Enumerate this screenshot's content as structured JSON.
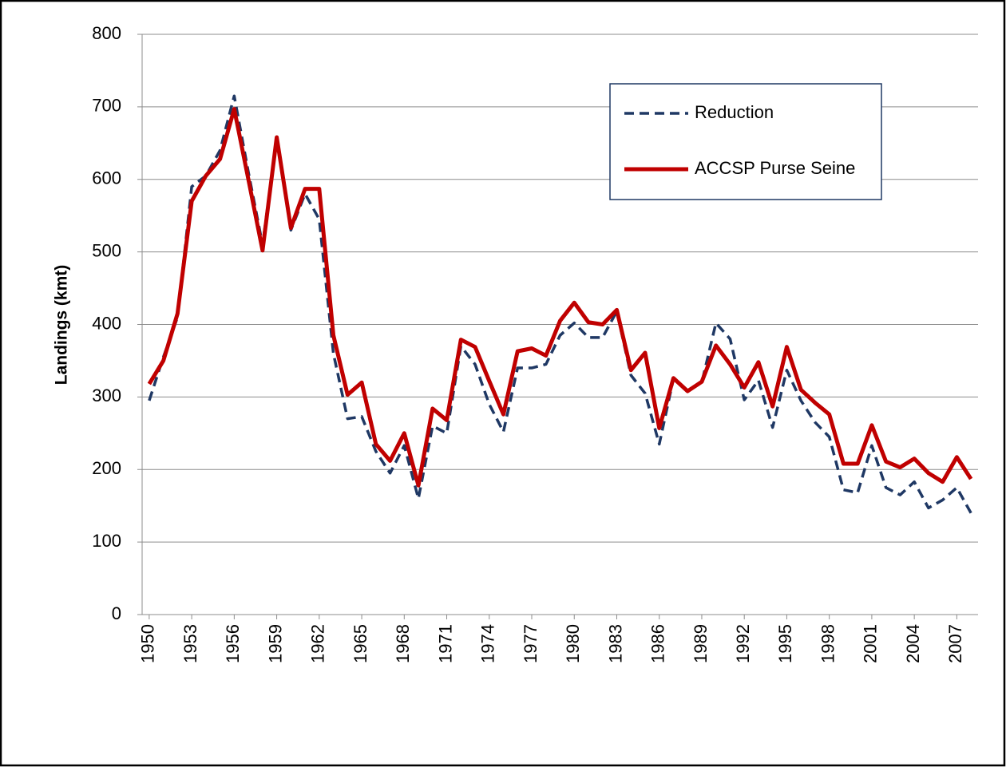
{
  "chart_data": {
    "type": "line",
    "y_label": "Landings (kmt)",
    "x": [
      1950,
      1951,
      1952,
      1953,
      1954,
      1955,
      1956,
      1957,
      1958,
      1959,
      1960,
      1961,
      1962,
      1963,
      1964,
      1965,
      1966,
      1967,
      1968,
      1969,
      1970,
      1971,
      1972,
      1973,
      1974,
      1975,
      1976,
      1977,
      1978,
      1979,
      1980,
      1981,
      1982,
      1983,
      1984,
      1985,
      1986,
      1987,
      1988,
      1989,
      1990,
      1991,
      1992,
      1993,
      1994,
      1995,
      1996,
      1997,
      1998,
      1999,
      2000,
      2001,
      2002,
      2003,
      2004,
      2005,
      2006,
      2007,
      2008
    ],
    "xlim": [
      1949.5,
      2008.5
    ],
    "xticks": [
      1950,
      1953,
      1956,
      1959,
      1962,
      1965,
      1968,
      1971,
      1974,
      1977,
      1980,
      1983,
      1986,
      1989,
      1992,
      1995,
      1998,
      2001,
      2004,
      2007
    ],
    "ylim": [
      0,
      800
    ],
    "yticks": [
      0,
      100,
      200,
      300,
      400,
      500,
      600,
      700,
      800
    ],
    "grid": true,
    "legend": "upper right",
    "series": [
      {
        "name": "Reduction",
        "color": "#1f3864",
        "dashed": true,
        "values": [
          295,
          355,
          410,
          590,
          605,
          640,
          715,
          610,
          510,
          655,
          530,
          580,
          545,
          360,
          270,
          273,
          225,
          195,
          233,
          160,
          260,
          250,
          370,
          345,
          290,
          252,
          340,
          340,
          345,
          385,
          402,
          382,
          382,
          418,
          330,
          305,
          235,
          325,
          308,
          320,
          402,
          380,
          296,
          323,
          258,
          337,
          295,
          265,
          245,
          172,
          168,
          233,
          175,
          165,
          183,
          147,
          158,
          175,
          140
        ]
      },
      {
        "name": "ACCSP Purse Seine",
        "color": "#c00000",
        "dashed": false,
        "values": [
          318,
          350,
          415,
          570,
          605,
          628,
          697,
          600,
          502,
          658,
          533,
          587,
          587,
          385,
          303,
          320,
          235,
          212,
          250,
          178,
          284,
          268,
          379,
          369,
          322,
          276,
          363,
          367,
          357,
          405,
          430,
          403,
          400,
          420,
          337,
          361,
          257,
          326,
          308,
          321,
          371,
          345,
          313,
          348,
          287,
          369,
          310,
          292,
          276,
          208,
          208,
          261,
          211,
          203,
          215,
          195,
          183,
          217,
          187
        ]
      }
    ]
  }
}
